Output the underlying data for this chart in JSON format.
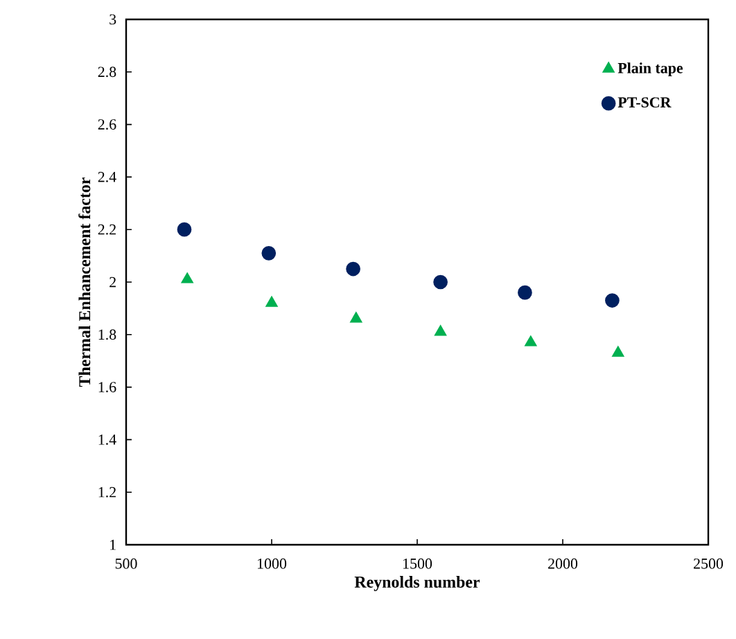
{
  "chart_data": {
    "type": "scatter",
    "xlabel": "Reynolds number",
    "ylabel": "Thermal Enhancement factor",
    "xlim": [
      500,
      2500
    ],
    "xticks": [
      500,
      1000,
      1500,
      2000,
      2500
    ],
    "ylim": [
      1,
      3
    ],
    "yticks": [
      1,
      1.2,
      1.4,
      1.6,
      1.8,
      2,
      2.2,
      2.4,
      2.6,
      2.8,
      3
    ],
    "legend": "top right",
    "series": [
      {
        "name": "Plain tape",
        "color": "#00b050",
        "marker": "triangle",
        "x": [
          710,
          1000,
          1290,
          1580,
          1890,
          2190
        ],
        "values": [
          2.01,
          1.92,
          1.86,
          1.81,
          1.77,
          1.73
        ]
      },
      {
        "name": "PT-SCR",
        "color": "#002060",
        "marker": "circle",
        "x": [
          700,
          990,
          1280,
          1580,
          1870,
          2170
        ],
        "values": [
          2.2,
          2.11,
          2.05,
          2.0,
          1.96,
          1.93
        ]
      }
    ]
  }
}
